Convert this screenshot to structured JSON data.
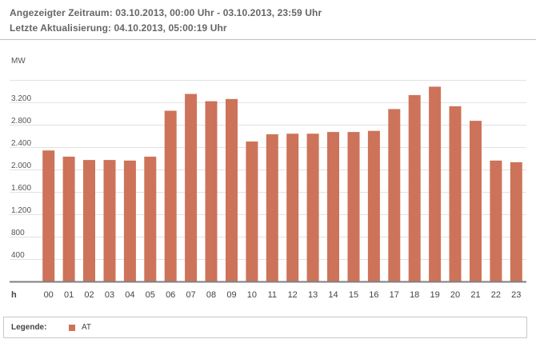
{
  "header": {
    "range_text": "Angezeigter Zeitraum: 03.10.2013, 00:00 Uhr - 03.10.2013, 23:59 Uhr",
    "update_text": "Letzte Aktualisierung: 04.10.2013, 05:00:19 Uhr"
  },
  "legend": {
    "title": "Legende:",
    "series_label": "AT"
  },
  "colors": {
    "bar": "#cd735a",
    "grid": "#e2e2e2",
    "axis": "#7f7f7f"
  },
  "chart_data": {
    "type": "bar",
    "title": "",
    "xlabel": "h",
    "ylabel": "MW",
    "categories": [
      "00",
      "01",
      "02",
      "03",
      "04",
      "05",
      "06",
      "07",
      "08",
      "09",
      "10",
      "11",
      "12",
      "13",
      "14",
      "15",
      "16",
      "17",
      "18",
      "19",
      "20",
      "21",
      "22",
      "23"
    ],
    "series": [
      {
        "name": "AT",
        "values": [
          2340,
          2230,
          2170,
          2170,
          2160,
          2230,
          3050,
          3350,
          3220,
          3260,
          2500,
          2630,
          2640,
          2640,
          2670,
          2670,
          2690,
          3080,
          3330,
          3480,
          3130,
          2870,
          2160,
          2130
        ]
      }
    ],
    "ylim": [
      0,
      3600
    ],
    "yticks": [
      400,
      800,
      1200,
      1600,
      2000,
      2400,
      2800,
      3200
    ],
    "ytick_labels": [
      "400",
      "800",
      "1.200",
      "1.600",
      "2.000",
      "2.400",
      "2.800",
      "3.200"
    ],
    "grid": true,
    "legend_position": "bottom"
  }
}
